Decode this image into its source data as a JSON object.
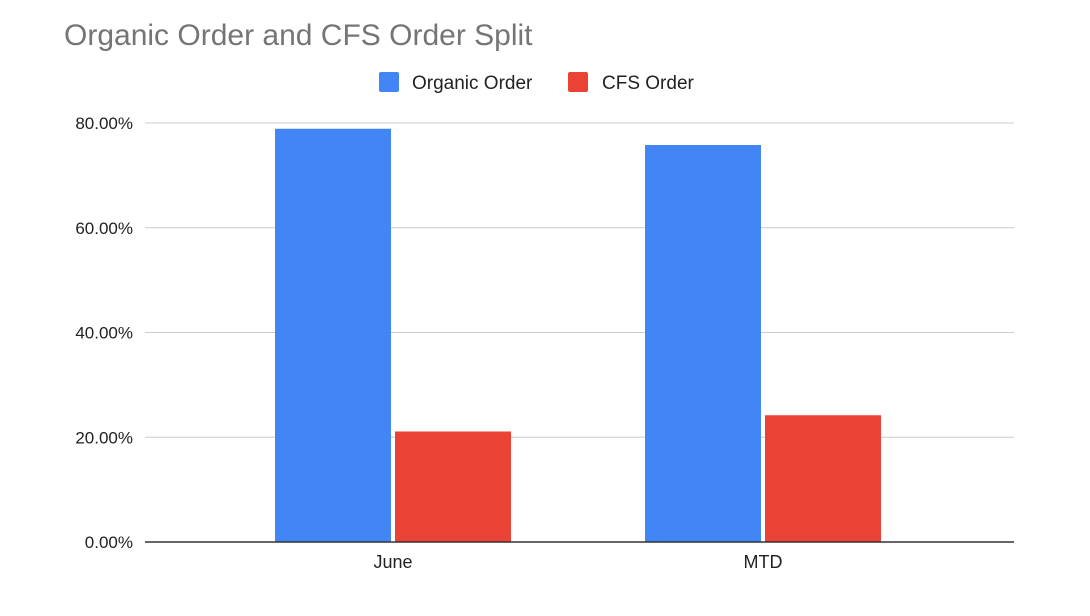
{
  "chart_data": {
    "type": "bar",
    "title": "Organic Order and CFS Order Split",
    "categories": [
      "June",
      "MTD"
    ],
    "series": [
      {
        "name": "Organic Order",
        "color": "#4285f4",
        "values": [
          78.9,
          75.8
        ]
      },
      {
        "name": "CFS Order",
        "color": "#ea4335",
        "values": [
          21.1,
          24.2
        ]
      }
    ],
    "yticks": [
      0,
      20,
      40,
      60,
      80
    ],
    "ytick_labels": [
      "0.00%",
      "20.00%",
      "40.00%",
      "60.00%",
      "80.00%"
    ],
    "ylim": [
      0,
      80
    ],
    "xlabel": "",
    "ylabel": "",
    "legend_position": "top-center",
    "grid": true
  }
}
